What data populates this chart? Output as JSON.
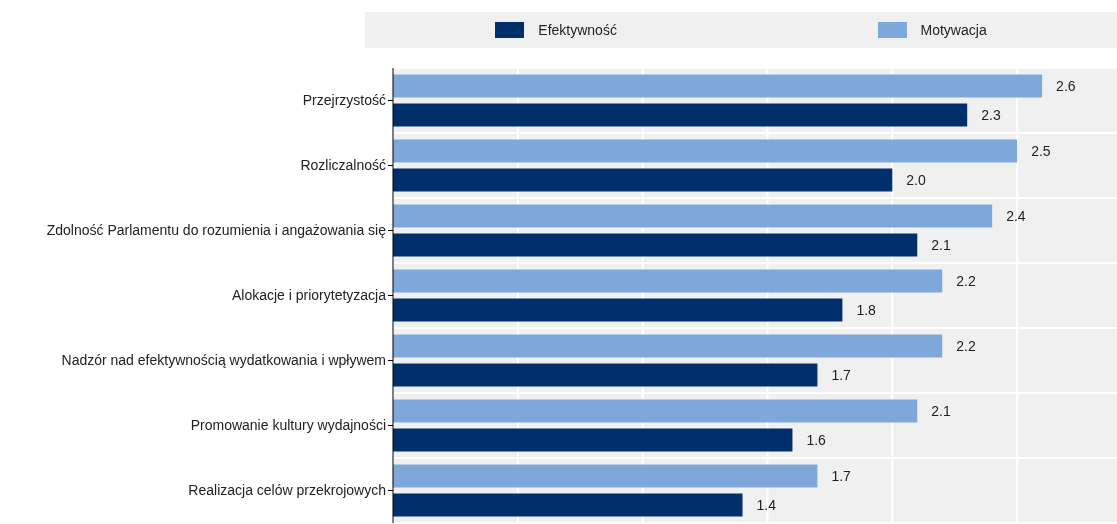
{
  "chart_data": {
    "type": "bar",
    "orientation": "horizontal",
    "categories": [
      "Przejrzystość",
      "Rozliczalność",
      "Zdolność Parlamentu do rozumienia i angażowania się",
      "Alokacje i priorytetyzacja",
      "Nadzór nad efektywnością wydatkowania i wpływem",
      "Promowanie kultury wydajności",
      "Realizacja celów przekrojowych"
    ],
    "series": [
      {
        "name": "Efektywność",
        "color": "#002f6c",
        "values": [
          2.3,
          2.0,
          2.1,
          1.8,
          1.7,
          1.6,
          1.4
        ],
        "value_labels": [
          "2.3",
          "2.0",
          "2.1",
          "1.8",
          "1.7",
          "1.6",
          "1.4"
        ]
      },
      {
        "name": "Motywacja",
        "color": "#7fa8da",
        "values": [
          2.6,
          2.5,
          2.4,
          2.2,
          2.2,
          2.1,
          1.7
        ],
        "value_labels": [
          "2.6",
          "2.5",
          "2.4",
          "2.2",
          "2.2",
          "2.1",
          "1.7"
        ]
      }
    ],
    "xlim": [
      0,
      2.9
    ],
    "xticks": [
      {
        "value": 0,
        "label": null
      },
      {
        "value": 0.5,
        "label": null
      },
      {
        "value": 1,
        "label": null
      },
      {
        "value": 1.5,
        "label": null
      },
      {
        "value": 2,
        "label": null
      },
      {
        "value": 2.5,
        "label": null
      }
    ],
    "tick_labels": "y",
    "grid": true,
    "legend": "top"
  }
}
